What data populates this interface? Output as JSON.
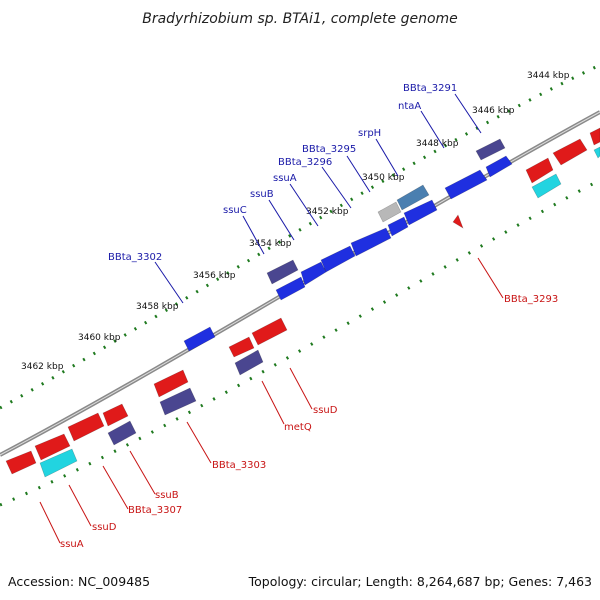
{
  "title": "Bradyrhizobium sp. BTAi1, complete genome",
  "footer": {
    "accession": "Accession: NC_009485",
    "topology": "Topology: circular; Length: 8,264,687 bp; Genes: 7,463"
  },
  "colors": {
    "forward": "#1f2fe0",
    "reverse": "#e01a1a",
    "purple": "#4a4690",
    "cyan": "#22d4e0",
    "steel": "#4a7fb0",
    "grey": "#b8b8b8",
    "backbone": "#8a8a8a",
    "ticks": "#1f7a1f",
    "forward_label": "#1a1aa8",
    "reverse_label": "#c81414"
  },
  "ticks": [
    "3444 kbp",
    "3446 kbp",
    "3448 kbp",
    "3450 kbp",
    "3452 kbp",
    "3454 kbp",
    "3456 kbp",
    "3458 kbp",
    "3460 kbp",
    "3462 kbp"
  ],
  "forward_labels": [
    "BBta_3291",
    "ntaA",
    "srpH",
    "BBta_3295",
    "BBta_3296",
    "ssuA",
    "ssuB",
    "ssuC",
    "BBta_3302"
  ],
  "reverse_labels": [
    "BBta_3293",
    "ssuD",
    "metQ",
    "BBta_3303",
    "ssuB",
    "BBta_3307",
    "ssuD",
    "ssuA"
  ]
}
